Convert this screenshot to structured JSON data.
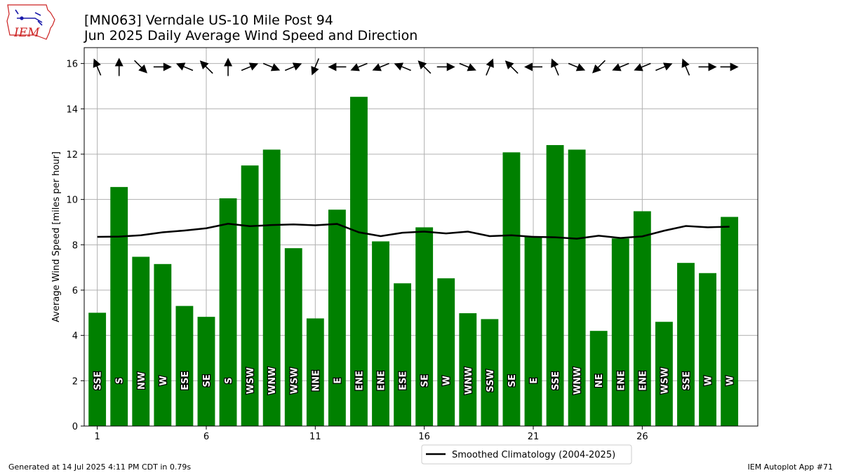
{
  "header": {
    "title_line1": "[MN063] Verndale US-10 Mile Post 94",
    "title_line2": "Jun 2025 Daily Average Wind Speed and Direction",
    "logo_text": "IEM"
  },
  "footer": {
    "generated": "Generated at 14 Jul 2025 4:11 PM CDT in 0.79s",
    "app": "IEM Autoplot App #71"
  },
  "colors": {
    "bar": "#008000",
    "climatology": "#000000",
    "grid": "#b0b0b0",
    "logo_red": "#cc2222",
    "logo_blue": "#1a1aaa"
  },
  "chart_data": {
    "type": "bar",
    "ylabel": "Average Wind Speed [miles per hour]",
    "xlabel": "",
    "ylim": [
      0,
      16.7
    ],
    "xlim": [
      0.4,
      31.3
    ],
    "grid": true,
    "legend_position": "bottom-center-outside",
    "x_ticks": [
      1,
      6,
      11,
      16,
      21,
      26
    ],
    "y_ticks": [
      0,
      2,
      4,
      6,
      8,
      10,
      12,
      14,
      16
    ],
    "days": [
      1,
      2,
      3,
      4,
      5,
      6,
      7,
      8,
      9,
      10,
      11,
      12,
      13,
      14,
      15,
      16,
      17,
      18,
      19,
      20,
      21,
      22,
      23,
      24,
      25,
      26,
      27,
      28,
      29,
      30
    ],
    "values": [
      5.0,
      10.55,
      7.47,
      7.15,
      5.3,
      4.82,
      10.05,
      11.5,
      12.2,
      7.85,
      4.75,
      9.55,
      14.53,
      8.15,
      6.3,
      8.77,
      6.52,
      4.98,
      4.72,
      12.08,
      8.37,
      12.4,
      12.2,
      4.2,
      8.28,
      9.48,
      4.6,
      7.2,
      6.75,
      9.23
    ],
    "directions": [
      "SSE",
      "S",
      "NW",
      "W",
      "ESE",
      "SE",
      "S",
      "WSW",
      "WNW",
      "WSW",
      "NNE",
      "E",
      "ENE",
      "ENE",
      "ESE",
      "SE",
      "W",
      "WNW",
      "SSW",
      "SE",
      "E",
      "SSE",
      "WNW",
      "NE",
      "ENE",
      "ENE",
      "WSW",
      "SSE",
      "W",
      "W"
    ],
    "arrow_y": 15.85,
    "series": [
      {
        "name": "Smoothed Climatology (2004-2025)",
        "type": "line",
        "values": [
          8.35,
          8.36,
          8.42,
          8.55,
          8.63,
          8.73,
          8.93,
          8.82,
          8.87,
          8.9,
          8.86,
          8.92,
          8.55,
          8.38,
          8.53,
          8.58,
          8.5,
          8.58,
          8.38,
          8.42,
          8.35,
          8.33,
          8.27,
          8.4,
          8.3,
          8.37,
          8.62,
          8.83,
          8.77,
          8.8
        ]
      }
    ]
  }
}
